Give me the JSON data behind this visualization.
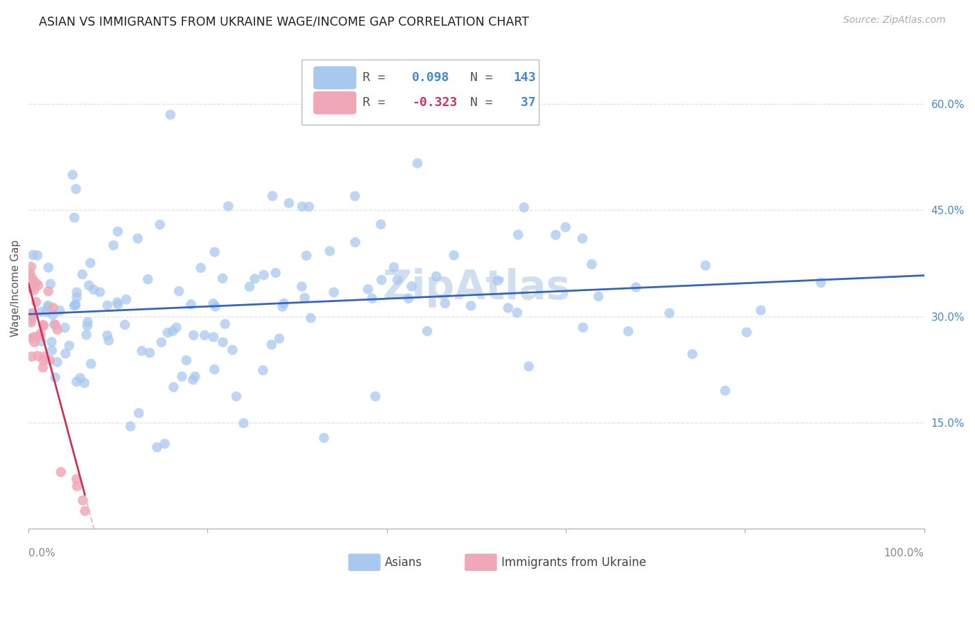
{
  "title": "ASIAN VS IMMIGRANTS FROM UKRAINE WAGE/INCOME GAP CORRELATION CHART",
  "source": "Source: ZipAtlas.com",
  "ylabel": "Wage/Income Gap",
  "ytick_labels": [
    "15.0%",
    "30.0%",
    "45.0%",
    "60.0%"
  ],
  "ytick_values": [
    0.15,
    0.3,
    0.45,
    0.6
  ],
  "xlim": [
    0.0,
    1.0
  ],
  "ylim": [
    0.0,
    0.68
  ],
  "asian_color": "#a8c8f0",
  "ukraine_color": "#f0a8b8",
  "asian_line_color": "#3366bb",
  "ukraine_line_color": "#cc3355",
  "ukraine_dashed_color": "#e0c0cc",
  "watermark_color": "#d0dff0",
  "background_color": "#ffffff",
  "grid_color": "#e0e0e0",
  "title_fontsize": 12.5,
  "source_fontsize": 10,
  "axis_label_fontsize": 11,
  "tick_fontsize": 11,
  "legend_fontsize": 13,
  "watermark_fontsize": 42
}
